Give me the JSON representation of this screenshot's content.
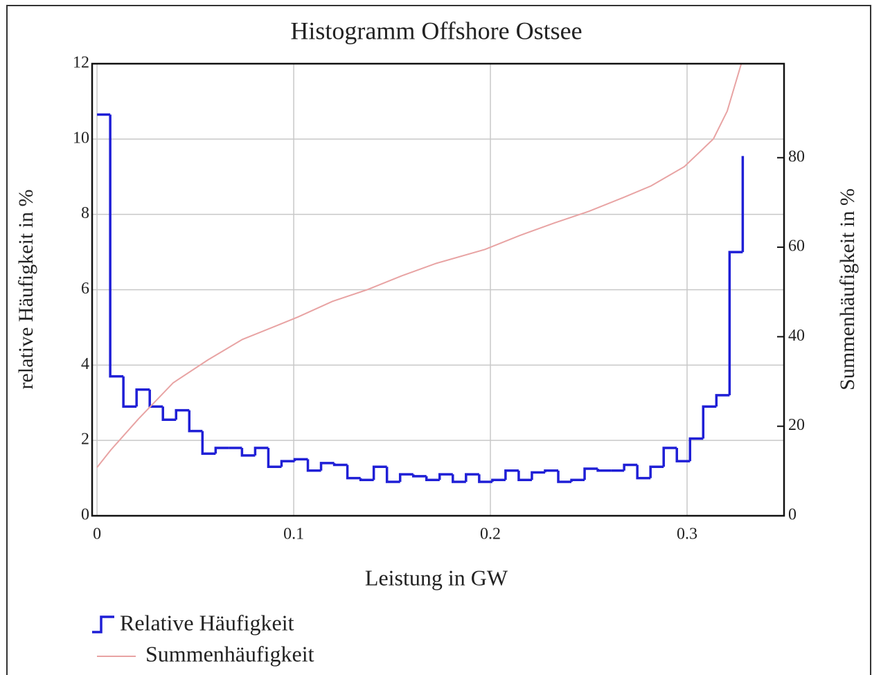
{
  "chart_data": {
    "type": "line",
    "title": "Histogramm Offshore Ostsee",
    "xlabel": "Leistung in GW",
    "ylabel": "relative Häufigkeit in %",
    "y2label": "Summenhäufigkeit in %",
    "xlim": [
      -0.0025,
      0.3493
    ],
    "ylim": [
      0,
      12
    ],
    "y2lim": [
      0,
      101
    ],
    "xticks": [
      0,
      0.1,
      0.2,
      0.3
    ],
    "yticks": [
      0,
      2,
      4,
      6,
      8,
      10,
      12
    ],
    "y2ticks": [
      0,
      20,
      40,
      60,
      80
    ],
    "grid": true,
    "legend": "below",
    "series": [
      {
        "name": "Relative Häufigkeit",
        "color": "#1f1fd6",
        "step": "post",
        "x": [
          0,
          0.0067,
          0.0134,
          0.0201,
          0.0268,
          0.0335,
          0.0402,
          0.0469,
          0.0536,
          0.0603,
          0.067,
          0.0737,
          0.0804,
          0.0871,
          0.0938,
          0.1005,
          0.1072,
          0.1139,
          0.1206,
          0.1273,
          0.134,
          0.1407,
          0.1474,
          0.1541,
          0.1608,
          0.1675,
          0.1742,
          0.1809,
          0.1876,
          0.1943,
          0.201,
          0.2077,
          0.2144,
          0.2211,
          0.2278,
          0.2345,
          0.2412,
          0.2479,
          0.2546,
          0.2613,
          0.268,
          0.2747,
          0.2814,
          0.2881,
          0.2948,
          0.3015,
          0.3082,
          0.3149,
          0.3216,
          0.3283
        ],
        "values": [
          10.65,
          3.7,
          2.9,
          3.35,
          2.9,
          2.55,
          2.8,
          2.25,
          1.65,
          1.8,
          1.8,
          1.6,
          1.8,
          1.3,
          1.45,
          1.5,
          1.2,
          1.4,
          1.35,
          1.0,
          0.95,
          1.3,
          0.9,
          1.1,
          1.05,
          0.95,
          1.1,
          0.9,
          1.1,
          0.9,
          0.95,
          1.2,
          0.95,
          1.15,
          1.2,
          0.9,
          0.95,
          1.25,
          1.2,
          1.2,
          1.35,
          1.0,
          1.3,
          1.8,
          1.45,
          2.05,
          2.9,
          3.2,
          7.0,
          9.55
        ]
      },
      {
        "name": "Summenhäufigkeit",
        "color": "#e8a3a3",
        "axis": "y2",
        "x": [
          0,
          0.007,
          0.021,
          0.0387,
          0.0563,
          0.0739,
          0.0915,
          0.1021,
          0.1197,
          0.1373,
          0.1549,
          0.1725,
          0.1972,
          0.2148,
          0.2324,
          0.25,
          0.2676,
          0.2817,
          0.2986,
          0.3134,
          0.3204,
          0.3275
        ],
        "values": [
          10.8,
          14.7,
          21.6,
          29.7,
          34.8,
          39.4,
          42.5,
          44.4,
          47.9,
          50.5,
          53.6,
          56.4,
          59.5,
          62.6,
          65.4,
          68,
          71.1,
          73.7,
          78,
          84.2,
          90.4,
          100.9
        ]
      }
    ]
  }
}
